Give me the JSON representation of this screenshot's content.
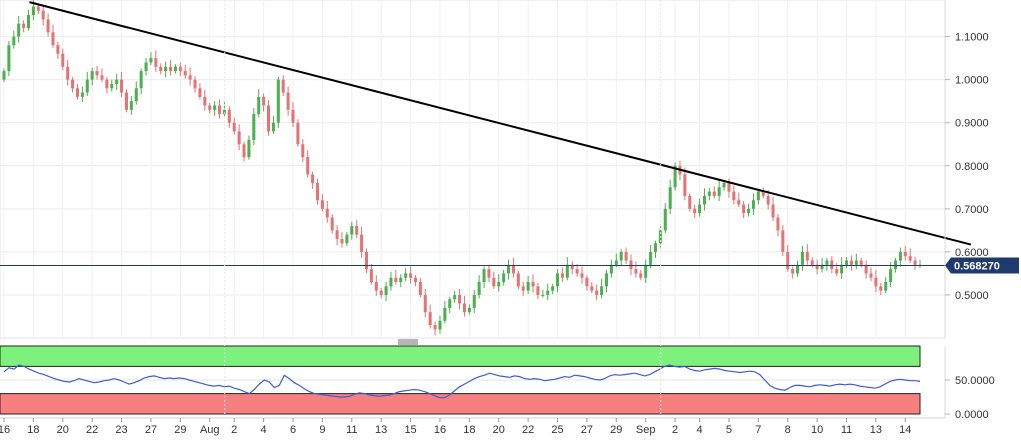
{
  "chart_data": [
    {
      "type": "candlestick",
      "title": "",
      "price_axis": {
        "ticks": [
          "1.1000",
          "1.0000",
          "0.9000",
          "0.8000",
          "0.7000",
          "0.6000",
          "0.5000"
        ],
        "range": [
          0.4,
          1.185
        ]
      },
      "current_price": {
        "label": "0.568270",
        "value": 0.56827
      },
      "date_axis": {
        "labels": [
          "16",
          "18",
          "20",
          "22",
          "23",
          "27",
          "29",
          "Aug",
          "2",
          "4",
          "6",
          "9",
          "11",
          "13",
          "15",
          "16",
          "18",
          "20",
          "22",
          "25",
          "27",
          "29",
          "Sep",
          "2",
          "4",
          "5",
          "7",
          "8",
          "10",
          "11",
          "13",
          "14"
        ],
        "label_index": [
          0,
          4,
          8,
          12,
          16,
          20,
          24,
          28,
          32,
          36,
          40,
          44,
          48,
          52,
          56,
          60,
          64,
          68,
          72,
          76,
          80,
          84,
          88,
          92,
          96,
          100,
          104,
          108,
          112,
          116,
          120,
          124
        ],
        "separators_after": [
          "Aug",
          "Sep"
        ]
      },
      "trendline": {
        "start": {
          "i": 3.5,
          "price": 1.18
        },
        "end": {
          "i": 133,
          "price": 0.617
        },
        "color": "#000000"
      },
      "series": [
        {
          "type": "candles",
          "up_color": "#4caf50",
          "down_color": "#e57373",
          "close": [
            1.02,
            1.08,
            1.1,
            1.13,
            1.12,
            1.15,
            1.17,
            1.16,
            1.14,
            1.11,
            1.08,
            1.06,
            1.03,
            1.0,
            0.98,
            0.96,
            0.97,
            1.0,
            1.02,
            1.01,
            1.0,
            0.98,
            0.99,
            1.0,
            0.97,
            0.93,
            0.95,
            0.98,
            1.02,
            1.04,
            1.05,
            1.03,
            1.02,
            1.03,
            1.02,
            1.03,
            1.02,
            1.01,
            1.0,
            0.98,
            0.96,
            0.94,
            0.93,
            0.94,
            0.92,
            0.93,
            0.9,
            0.88,
            0.85,
            0.82,
            0.86,
            0.92,
            0.96,
            0.94,
            0.88,
            0.9,
            1.0,
            0.97,
            0.93,
            0.9,
            0.85,
            0.82,
            0.78,
            0.76,
            0.72,
            0.7,
            0.68,
            0.65,
            0.63,
            0.62,
            0.64,
            0.66,
            0.64,
            0.6,
            0.56,
            0.53,
            0.51,
            0.5,
            0.52,
            0.54,
            0.53,
            0.54,
            0.55,
            0.54,
            0.53,
            0.5,
            0.46,
            0.43,
            0.42,
            0.44,
            0.47,
            0.49,
            0.5,
            0.48,
            0.46,
            0.47,
            0.5,
            0.53,
            0.56,
            0.54,
            0.52,
            0.53,
            0.55,
            0.57,
            0.55,
            0.52,
            0.51,
            0.53,
            0.52,
            0.5,
            0.5,
            0.51,
            0.52,
            0.55,
            0.54,
            0.57,
            0.56,
            0.55,
            0.54,
            0.52,
            0.51,
            0.5,
            0.52,
            0.55,
            0.57,
            0.58,
            0.6,
            0.58,
            0.56,
            0.55,
            0.54,
            0.57,
            0.6,
            0.62,
            0.65,
            0.7,
            0.75,
            0.8,
            0.78,
            0.73,
            0.7,
            0.69,
            0.71,
            0.73,
            0.74,
            0.73,
            0.75,
            0.76,
            0.74,
            0.72,
            0.71,
            0.69,
            0.7,
            0.72,
            0.74,
            0.73,
            0.71,
            0.68,
            0.65,
            0.6,
            0.56,
            0.55,
            0.57,
            0.6,
            0.58,
            0.57,
            0.56,
            0.57,
            0.58,
            0.56,
            0.55,
            0.57,
            0.58,
            0.57,
            0.58,
            0.57,
            0.55,
            0.54,
            0.52,
            0.51,
            0.53,
            0.56,
            0.58,
            0.6,
            0.59,
            0.58,
            0.57,
            0.57
          ]
        }
      ]
    },
    {
      "type": "line",
      "title": "",
      "y_ticks": [
        "50.0000",
        "0.0000"
      ],
      "y_range": [
        0,
        100
      ],
      "bands": {
        "upper": 70,
        "lower": 30,
        "upper_color": "#7cf27c",
        "lower_color": "#f77f7f"
      },
      "series": [
        {
          "color": "#3f5bd9",
          "values": [
            62,
            68,
            66,
            72,
            70,
            66,
            63,
            60,
            58,
            55,
            52,
            50,
            48,
            47,
            49,
            52,
            50,
            48,
            46,
            47,
            49,
            50,
            52,
            50,
            47,
            44,
            46,
            49,
            53,
            55,
            56,
            54,
            52,
            53,
            52,
            53,
            52,
            50,
            48,
            46,
            44,
            42,
            41,
            42,
            40,
            41,
            38,
            36,
            33,
            30,
            36,
            44,
            50,
            47,
            39,
            42,
            57,
            52,
            46,
            42,
            37,
            33,
            30,
            29,
            28,
            27,
            26,
            25,
            25,
            26,
            29,
            31,
            30,
            28,
            27,
            26,
            27,
            28,
            30,
            33,
            34,
            35,
            36,
            35,
            33,
            30,
            27,
            24,
            24,
            28,
            34,
            40,
            44,
            48,
            52,
            55,
            57,
            60,
            58,
            56,
            55,
            54,
            56,
            55,
            52,
            51,
            52,
            51,
            49,
            50,
            51,
            53,
            55,
            54,
            57,
            56,
            55,
            53,
            51,
            50,
            52,
            56,
            58,
            57,
            58,
            59,
            60,
            58,
            56,
            58,
            62,
            66,
            70,
            72,
            70,
            69,
            70,
            66,
            64,
            63,
            65,
            66,
            67,
            66,
            64,
            63,
            62,
            61,
            62,
            63,
            62,
            58,
            50,
            42,
            38,
            36,
            35,
            39,
            42,
            42,
            41,
            40,
            42,
            43,
            42,
            41,
            43,
            44,
            43,
            44,
            43,
            41,
            40,
            39,
            38,
            40,
            44,
            48,
            50,
            51,
            50,
            49,
            49,
            48
          ]
        }
      ]
    }
  ]
}
